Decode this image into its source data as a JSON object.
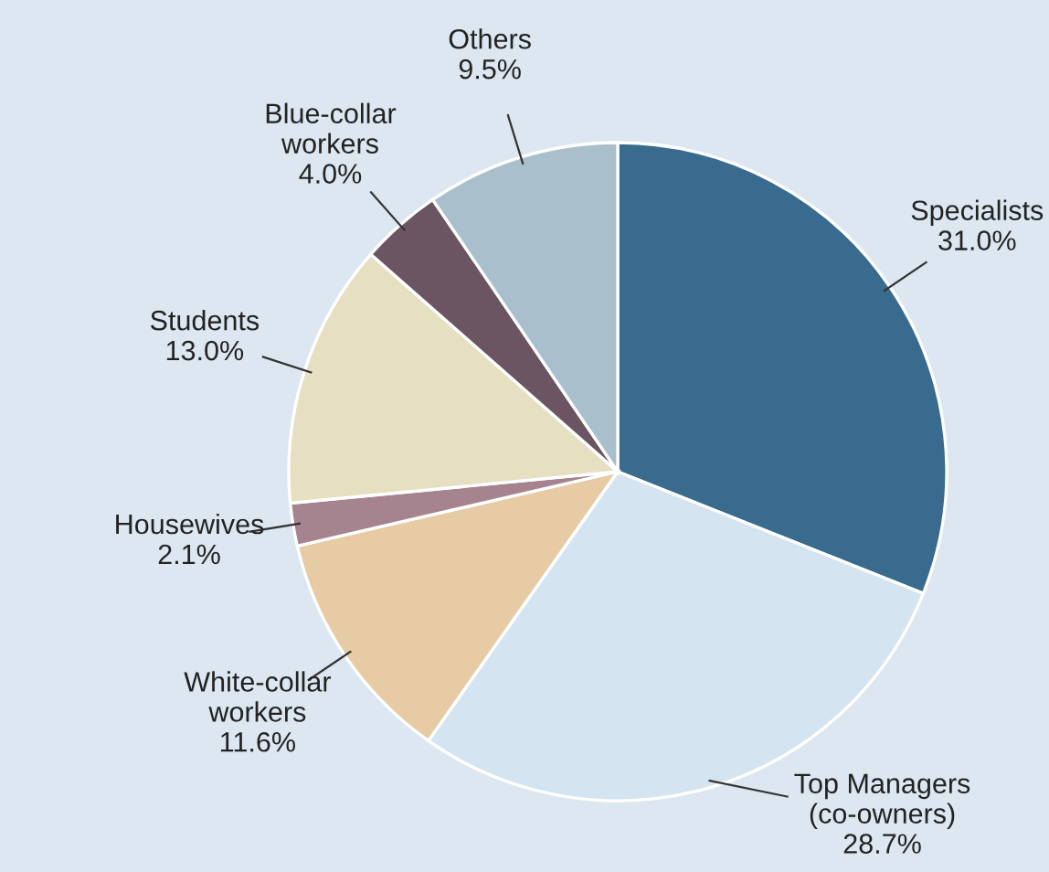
{
  "chart_data": {
    "type": "pie",
    "categories": [
      "Specialists",
      "Top Managers\n(co-owners)",
      "White-collar\nworkers",
      "Housewives",
      "Students",
      "Blue-collar\nworkers",
      "Others"
    ],
    "values": [
      31.0,
      28.7,
      11.6,
      2.1,
      13.0,
      4.0,
      9.5
    ],
    "value_labels": [
      "31.0%",
      "28.7%",
      "11.6%",
      "2.1%",
      "13.0%",
      "4.0%",
      "9.5%"
    ],
    "colors": [
      "#386b8e",
      "#d4e4f0",
      "#e6cba4",
      "#a5838f",
      "#e6dfc2",
      "#6b5562",
      "#a9bfcc"
    ]
  }
}
